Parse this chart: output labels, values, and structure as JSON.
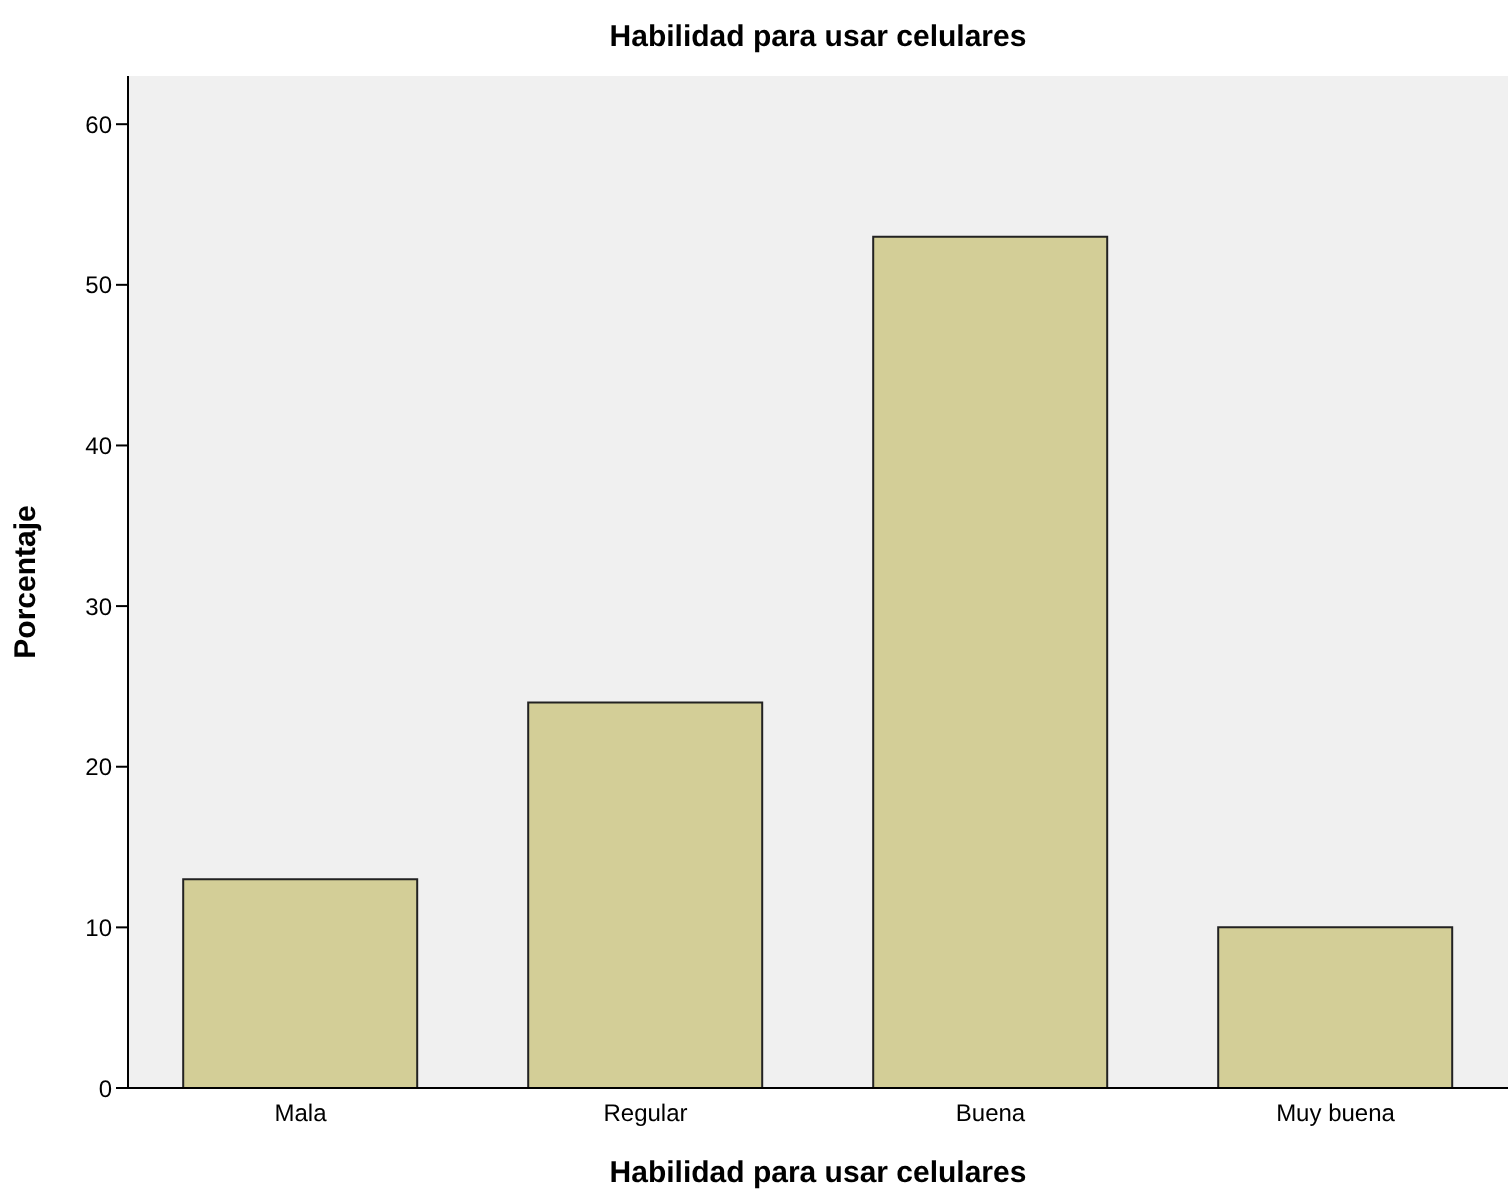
{
  "chart_data": {
    "type": "bar",
    "title": "Habilidad para usar celulares",
    "xlabel": "Habilidad para usar celulares",
    "ylabel": "Porcentaje",
    "categories": [
      "Mala",
      "Regular",
      "Buena",
      "Muy buena"
    ],
    "values": [
      13,
      24,
      53,
      10
    ],
    "color": "#d3ce97",
    "ylim": [
      0,
      63
    ],
    "yticks": [
      0,
      10,
      20,
      30,
      40,
      50,
      60
    ],
    "grid": false
  }
}
